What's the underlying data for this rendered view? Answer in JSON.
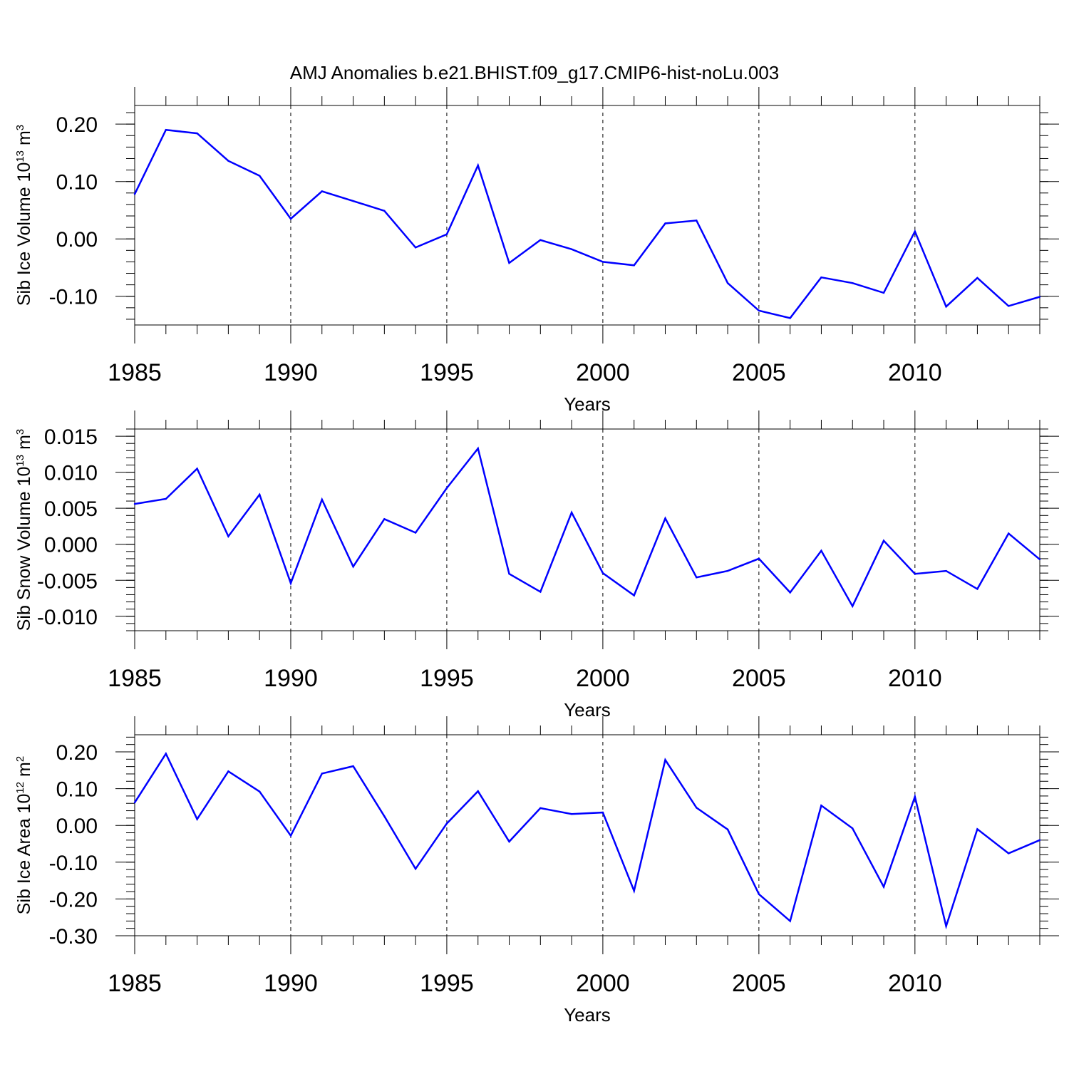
{
  "title": "AMJ Anomalies b.e21.BHIST.f09_g17.CMIP6-hist-noLu.003",
  "line_color": "#0000ff",
  "chart_data": [
    {
      "type": "line",
      "ylabel": {
        "text": "Sib Ice Volume 10",
        "sup": "13",
        "unit": " m",
        "unit_sup": "3"
      },
      "xlabel": "Years",
      "xlim": [
        1985,
        2014
      ],
      "ylim": [
        -0.15,
        0.2325
      ],
      "yticks": [
        0.2,
        0.1,
        0.0,
        -0.1
      ],
      "ytick_labels": [
        "0.20",
        "0.10",
        "0.00",
        "-0.10"
      ],
      "yminor": 0.02,
      "xticks": [
        1985,
        1990,
        1995,
        2000,
        2005,
        2010
      ],
      "xtick_labels": [
        "1985",
        "1990",
        "1995",
        "2000",
        "2005",
        "2010"
      ],
      "x": [
        1985,
        1986,
        1987,
        1988,
        1989,
        1990,
        1991,
        1992,
        1993,
        1994,
        1995,
        1996,
        1997,
        1998,
        1999,
        2000,
        2001,
        2002,
        2003,
        2004,
        2005,
        2006,
        2007,
        2008,
        2009,
        2010,
        2011,
        2012,
        2013,
        2014
      ],
      "values": [
        0.078,
        0.19,
        0.184,
        0.136,
        0.11,
        0.035,
        0.083,
        0.066,
        0.049,
        -0.015,
        0.008,
        0.128,
        -0.042,
        -0.002,
        -0.018,
        -0.04,
        -0.046,
        0.027,
        0.032,
        -0.077,
        -0.125,
        -0.138,
        -0.067,
        -0.077,
        -0.094,
        0.013,
        -0.118,
        -0.068,
        -0.117,
        -0.101
      ]
    },
    {
      "type": "line",
      "ylabel": {
        "text": "Sib Snow Volume 10",
        "sup": "13",
        "unit": " m",
        "unit_sup": "3"
      },
      "xlabel": "Years",
      "xlim": [
        1985,
        2014
      ],
      "ylim": [
        -0.012,
        0.016
      ],
      "yticks": [
        0.015,
        0.01,
        0.005,
        0.0,
        -0.005,
        -0.01
      ],
      "ytick_labels": [
        "0.015",
        "0.010",
        "0.005",
        "0.000",
        "-0.005",
        "-0.010"
      ],
      "yminor": 0.001,
      "xticks": [
        1985,
        1990,
        1995,
        2000,
        2005,
        2010
      ],
      "xtick_labels": [
        "1985",
        "1990",
        "1995",
        "2000",
        "2005",
        "2010"
      ],
      "x": [
        1985,
        1986,
        1987,
        1988,
        1989,
        1990,
        1991,
        1992,
        1993,
        1994,
        1995,
        1996,
        1997,
        1998,
        1999,
        2000,
        2001,
        2002,
        2003,
        2004,
        2005,
        2006,
        2007,
        2008,
        2009,
        2010,
        2011,
        2012,
        2013,
        2014
      ],
      "values": [
        0.0056,
        0.0063,
        0.0105,
        0.0011,
        0.0069,
        -0.0054,
        0.0062,
        -0.0031,
        0.0035,
        0.0016,
        0.0078,
        0.0133,
        -0.0041,
        -0.0066,
        0.0044,
        -0.004,
        -0.0071,
        0.0036,
        -0.0046,
        -0.0037,
        -0.002,
        -0.0067,
        -0.0009,
        -0.0086,
        0.0005,
        -0.0041,
        -0.0037,
        -0.0062,
        0.0015,
        -0.0021
      ]
    },
    {
      "type": "line",
      "ylabel": {
        "text": "Sib Ice Area 10",
        "sup": "12",
        "unit": " m",
        "unit_sup": "2"
      },
      "xlabel": "Years",
      "xlim": [
        1985,
        2014
      ],
      "ylim": [
        -0.3,
        0.2465
      ],
      "yticks": [
        0.2,
        0.1,
        0.0,
        -0.1,
        -0.2,
        -0.3
      ],
      "ytick_labels": [
        "0.20",
        "0.10",
        "0.00",
        "-0.10",
        "-0.20",
        "-0.30"
      ],
      "yminor": 0.02,
      "xticks": [
        1985,
        1990,
        1995,
        2000,
        2005,
        2010
      ],
      "xtick_labels": [
        "1985",
        "1990",
        "1995",
        "2000",
        "2005",
        "2010"
      ],
      "x": [
        1985,
        1986,
        1987,
        1988,
        1989,
        1990,
        1991,
        1992,
        1993,
        1994,
        1995,
        1996,
        1997,
        1998,
        1999,
        2000,
        2001,
        2002,
        2003,
        2004,
        2005,
        2006,
        2007,
        2008,
        2009,
        2010,
        2011,
        2012,
        2013,
        2014
      ],
      "values": [
        0.062,
        0.195,
        0.017,
        0.147,
        0.092,
        -0.028,
        0.141,
        0.161,
        0.025,
        -0.118,
        0.005,
        0.093,
        -0.044,
        0.047,
        0.031,
        0.035,
        -0.178,
        0.178,
        0.048,
        -0.011,
        -0.187,
        -0.26,
        0.054,
        -0.008,
        -0.167,
        0.078,
        -0.274,
        -0.01,
        -0.076,
        -0.04
      ]
    }
  ]
}
